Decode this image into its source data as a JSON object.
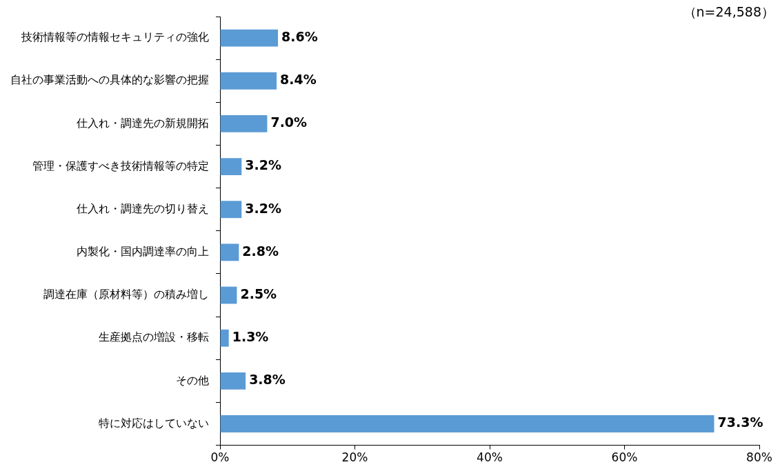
{
  "chart_data": {
    "type": "bar",
    "orientation": "horizontal",
    "annotations": [
      "（n=24,588）"
    ],
    "categories": [
      "技術情報等の情報セキュリティの強化",
      "自社の事業活動への具体的な影響の把握",
      "仕入れ・調達先の新規開拓",
      "管理・保護すべき技術情報等の特定",
      "仕入れ・調達先の切り替え",
      "内製化・国内調達率の向上",
      "調達在庫（原材料等）の積み増し",
      "生産拠点の増設・移転",
      "その他",
      "特に対応はしていない"
    ],
    "values": [
      8.6,
      8.4,
      7.0,
      3.2,
      3.2,
      2.8,
      2.5,
      1.3,
      3.8,
      73.3
    ],
    "value_labels": [
      "8.6%",
      "8.4%",
      "7.0%",
      "3.2%",
      "3.2%",
      "2.8%",
      "2.5%",
      "1.3%",
      "3.8%",
      "73.3%"
    ],
    "color": "#5b9bd5",
    "xlim": [
      0,
      80
    ],
    "xticks": [
      {
        "value": 0,
        "label": "0%"
      },
      {
        "value": 20,
        "label": "20%"
      },
      {
        "value": 40,
        "label": "40%"
      },
      {
        "value": 60,
        "label": "60%"
      },
      {
        "value": 80,
        "label": "80%"
      }
    ],
    "grid": false,
    "legend": false
  }
}
